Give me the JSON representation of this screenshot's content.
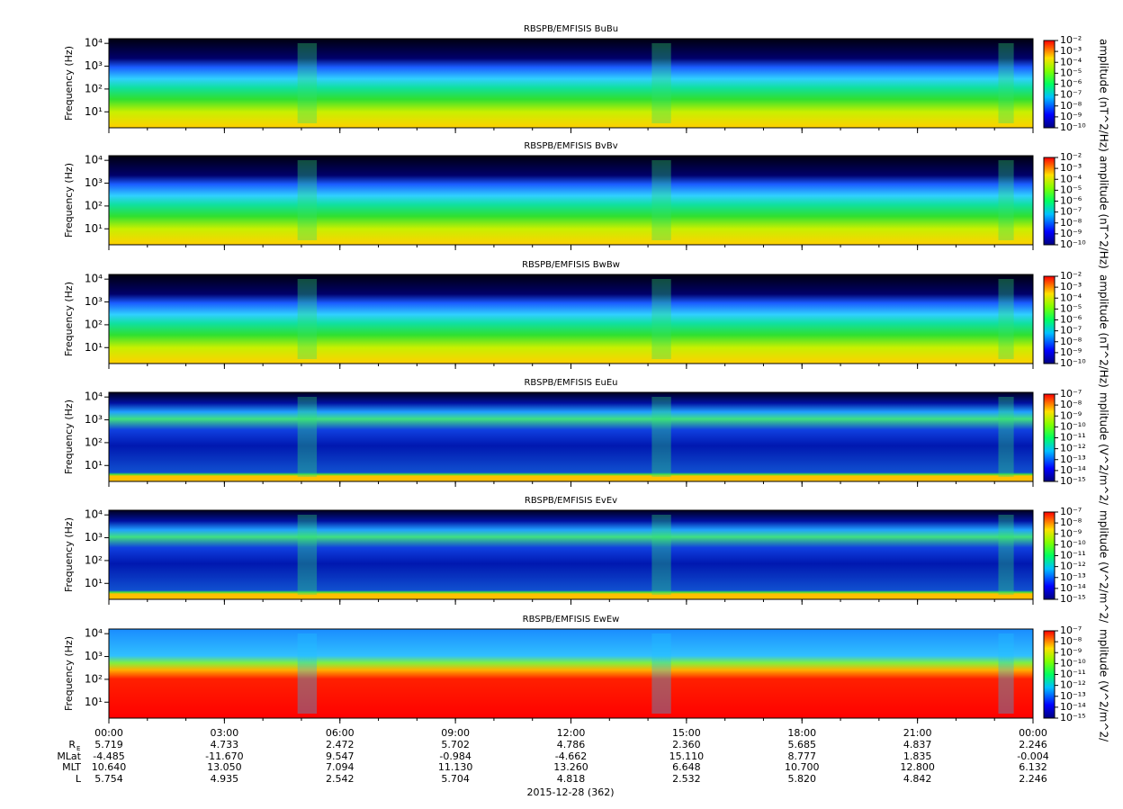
{
  "chart_data": [
    {
      "type": "spectrogram",
      "kind": "B",
      "title": "RBSPB/EMFISIS  BuBu",
      "ylabel": "Frequency (Hz)",
      "ylim": [
        2,
        16000
      ],
      "log_y": true,
      "yticks": [
        {
          "value": 10,
          "label": "10¹"
        },
        {
          "value": 100,
          "label": "10²"
        },
        {
          "value": 1000,
          "label": "10³"
        },
        {
          "value": 10000,
          "label": "10⁴"
        }
      ],
      "colorbar": {
        "label": "amplitude (nT^2/Hz)",
        "lim": [
          1e-10,
          0.01
        ],
        "ticks": [
          {
            "value": 0.01,
            "label": "10⁻²"
          },
          {
            "value": 0.001,
            "label": "10⁻³"
          },
          {
            "value": 0.0001,
            "label": "10⁻⁴"
          },
          {
            "value": 1e-05,
            "label": "10⁻⁵"
          },
          {
            "value": 1e-06,
            "label": "10⁻⁶"
          },
          {
            "value": 1e-07,
            "label": "10⁻⁷"
          },
          {
            "value": 1e-08,
            "label": "10⁻⁸"
          },
          {
            "value": 1e-09,
            "label": "10⁻⁹"
          },
          {
            "value": 1e-10,
            "label": "10⁻¹⁰"
          }
        ]
      }
    },
    {
      "type": "spectrogram",
      "kind": "B",
      "title": "RBSPB/EMFISIS  BvBv",
      "ylabel": "Frequency (Hz)",
      "ylim": [
        2,
        16000
      ],
      "log_y": true,
      "yticks": [
        {
          "value": 10,
          "label": "10¹"
        },
        {
          "value": 100,
          "label": "10²"
        },
        {
          "value": 1000,
          "label": "10³"
        },
        {
          "value": 10000,
          "label": "10⁴"
        }
      ],
      "colorbar": {
        "label": "amplitude (nT^2/Hz)",
        "lim": [
          1e-10,
          0.01
        ],
        "ticks": [
          {
            "value": 0.01,
            "label": "10⁻²"
          },
          {
            "value": 0.001,
            "label": "10⁻³"
          },
          {
            "value": 0.0001,
            "label": "10⁻⁴"
          },
          {
            "value": 1e-05,
            "label": "10⁻⁵"
          },
          {
            "value": 1e-06,
            "label": "10⁻⁶"
          },
          {
            "value": 1e-07,
            "label": "10⁻⁷"
          },
          {
            "value": 1e-08,
            "label": "10⁻⁸"
          },
          {
            "value": 1e-09,
            "label": "10⁻⁹"
          },
          {
            "value": 1e-10,
            "label": "10⁻¹⁰"
          }
        ]
      }
    },
    {
      "type": "spectrogram",
      "kind": "B",
      "title": "RBSPB/EMFISIS  BwBw",
      "ylabel": "Frequency (Hz)",
      "ylim": [
        2,
        16000
      ],
      "log_y": true,
      "yticks": [
        {
          "value": 10,
          "label": "10¹"
        },
        {
          "value": 100,
          "label": "10²"
        },
        {
          "value": 1000,
          "label": "10³"
        },
        {
          "value": 10000,
          "label": "10⁴"
        }
      ],
      "colorbar": {
        "label": "amplitude (nT^2/Hz)",
        "lim": [
          1e-10,
          0.01
        ],
        "ticks": [
          {
            "value": 0.01,
            "label": "10⁻²"
          },
          {
            "value": 0.001,
            "label": "10⁻³"
          },
          {
            "value": 0.0001,
            "label": "10⁻⁴"
          },
          {
            "value": 1e-05,
            "label": "10⁻⁵"
          },
          {
            "value": 1e-06,
            "label": "10⁻⁶"
          },
          {
            "value": 1e-07,
            "label": "10⁻⁷"
          },
          {
            "value": 1e-08,
            "label": "10⁻⁸"
          },
          {
            "value": 1e-09,
            "label": "10⁻⁹"
          },
          {
            "value": 1e-10,
            "label": "10⁻¹⁰"
          }
        ]
      }
    },
    {
      "type": "spectrogram",
      "kind": "E",
      "title": "RBSPB/EMFISIS  EuEu",
      "ylabel": "Frequency (Hz)",
      "ylim": [
        2,
        16000
      ],
      "log_y": true,
      "yticks": [
        {
          "value": 10,
          "label": "10¹"
        },
        {
          "value": 100,
          "label": "10²"
        },
        {
          "value": 1000,
          "label": "10³"
        },
        {
          "value": 10000,
          "label": "10⁴"
        }
      ],
      "colorbar": {
        "label": "mplitude (V^2/m^2/",
        "lim": [
          1e-15,
          1e-07
        ],
        "ticks": [
          {
            "value": 1e-07,
            "label": "10⁻⁷"
          },
          {
            "value": 1e-08,
            "label": "10⁻⁸"
          },
          {
            "value": 1e-09,
            "label": "10⁻⁹"
          },
          {
            "value": 1e-10,
            "label": "10⁻¹⁰"
          },
          {
            "value": 1e-11,
            "label": "10⁻¹¹"
          },
          {
            "value": 1e-12,
            "label": "10⁻¹²"
          },
          {
            "value": 1e-13,
            "label": "10⁻¹³"
          },
          {
            "value": 1e-14,
            "label": "10⁻¹⁴"
          },
          {
            "value": 1e-15,
            "label": "10⁻¹⁵"
          }
        ]
      }
    },
    {
      "type": "spectrogram",
      "kind": "E",
      "title": "RBSPB/EMFISIS  EvEv",
      "ylabel": "Frequency (Hz)",
      "ylim": [
        2,
        16000
      ],
      "log_y": true,
      "yticks": [
        {
          "value": 10,
          "label": "10¹"
        },
        {
          "value": 100,
          "label": "10²"
        },
        {
          "value": 1000,
          "label": "10³"
        },
        {
          "value": 10000,
          "label": "10⁴"
        }
      ],
      "colorbar": {
        "label": "mplitude (V^2/m^2/",
        "lim": [
          1e-15,
          1e-07
        ],
        "ticks": [
          {
            "value": 1e-07,
            "label": "10⁻⁷"
          },
          {
            "value": 1e-08,
            "label": "10⁻⁸"
          },
          {
            "value": 1e-09,
            "label": "10⁻⁹"
          },
          {
            "value": 1e-10,
            "label": "10⁻¹⁰"
          },
          {
            "value": 1e-11,
            "label": "10⁻¹¹"
          },
          {
            "value": 1e-12,
            "label": "10⁻¹²"
          },
          {
            "value": 1e-13,
            "label": "10⁻¹³"
          },
          {
            "value": 1e-14,
            "label": "10⁻¹⁴"
          },
          {
            "value": 1e-15,
            "label": "10⁻¹⁵"
          }
        ]
      }
    },
    {
      "type": "spectrogram",
      "kind": "Ew",
      "title": "RBSPB/EMFISIS  EwEw",
      "ylabel": "Frequency (Hz)",
      "ylim": [
        2,
        16000
      ],
      "log_y": true,
      "yticks": [
        {
          "value": 10,
          "label": "10¹"
        },
        {
          "value": 100,
          "label": "10²"
        },
        {
          "value": 1000,
          "label": "10³"
        },
        {
          "value": 10000,
          "label": "10⁴"
        }
      ],
      "colorbar": {
        "label": "mplitude (V^2/m^2/",
        "lim": [
          1e-15,
          1e-07
        ],
        "ticks": [
          {
            "value": 1e-07,
            "label": "10⁻⁷"
          },
          {
            "value": 1e-08,
            "label": "10⁻⁸"
          },
          {
            "value": 1e-09,
            "label": "10⁻⁹"
          },
          {
            "value": 1e-10,
            "label": "10⁻¹⁰"
          },
          {
            "value": 1e-11,
            "label": "10⁻¹¹"
          },
          {
            "value": 1e-12,
            "label": "10⁻¹²"
          },
          {
            "value": 1e-13,
            "label": "10⁻¹³"
          },
          {
            "value": 1e-14,
            "label": "10⁻¹⁴"
          },
          {
            "value": 1e-15,
            "label": "10⁻¹⁵"
          }
        ]
      }
    }
  ],
  "time_axis": {
    "xlim": [
      0,
      24
    ],
    "xticks": [
      {
        "value": 0,
        "label": "00:00"
      },
      {
        "value": 3,
        "label": "03:00"
      },
      {
        "value": 6,
        "label": "06:00"
      },
      {
        "value": 9,
        "label": "09:00"
      },
      {
        "value": 12,
        "label": "12:00"
      },
      {
        "value": 15,
        "label": "15:00"
      },
      {
        "value": 18,
        "label": "18:00"
      },
      {
        "value": 21,
        "label": "21:00"
      },
      {
        "value": 24,
        "label": "00:00"
      }
    ],
    "date_label": "2015-12-28 (362)"
  },
  "ephemeris": [
    {
      "label": "R",
      "sub": "E",
      "values": [
        "5.719",
        "4.733",
        "2.472",
        "5.702",
        "4.786",
        "2.360",
        "5.685",
        "4.837",
        "2.246"
      ]
    },
    {
      "label": "MLat",
      "values": [
        "-4.485",
        "-11.670",
        "9.547",
        "-0.984",
        "-4.662",
        "15.110",
        "8.777",
        "1.835",
        "-0.004"
      ]
    },
    {
      "label": "MLT",
      "values": [
        "10.640",
        "13.050",
        "7.094",
        "11.130",
        "13.260",
        "6.648",
        "10.700",
        "12.800",
        "6.132"
      ]
    },
    {
      "label": "L",
      "values": [
        "5.754",
        "4.935",
        "2.542",
        "5.704",
        "4.818",
        "2.532",
        "5.820",
        "4.842",
        "2.246"
      ]
    }
  ]
}
